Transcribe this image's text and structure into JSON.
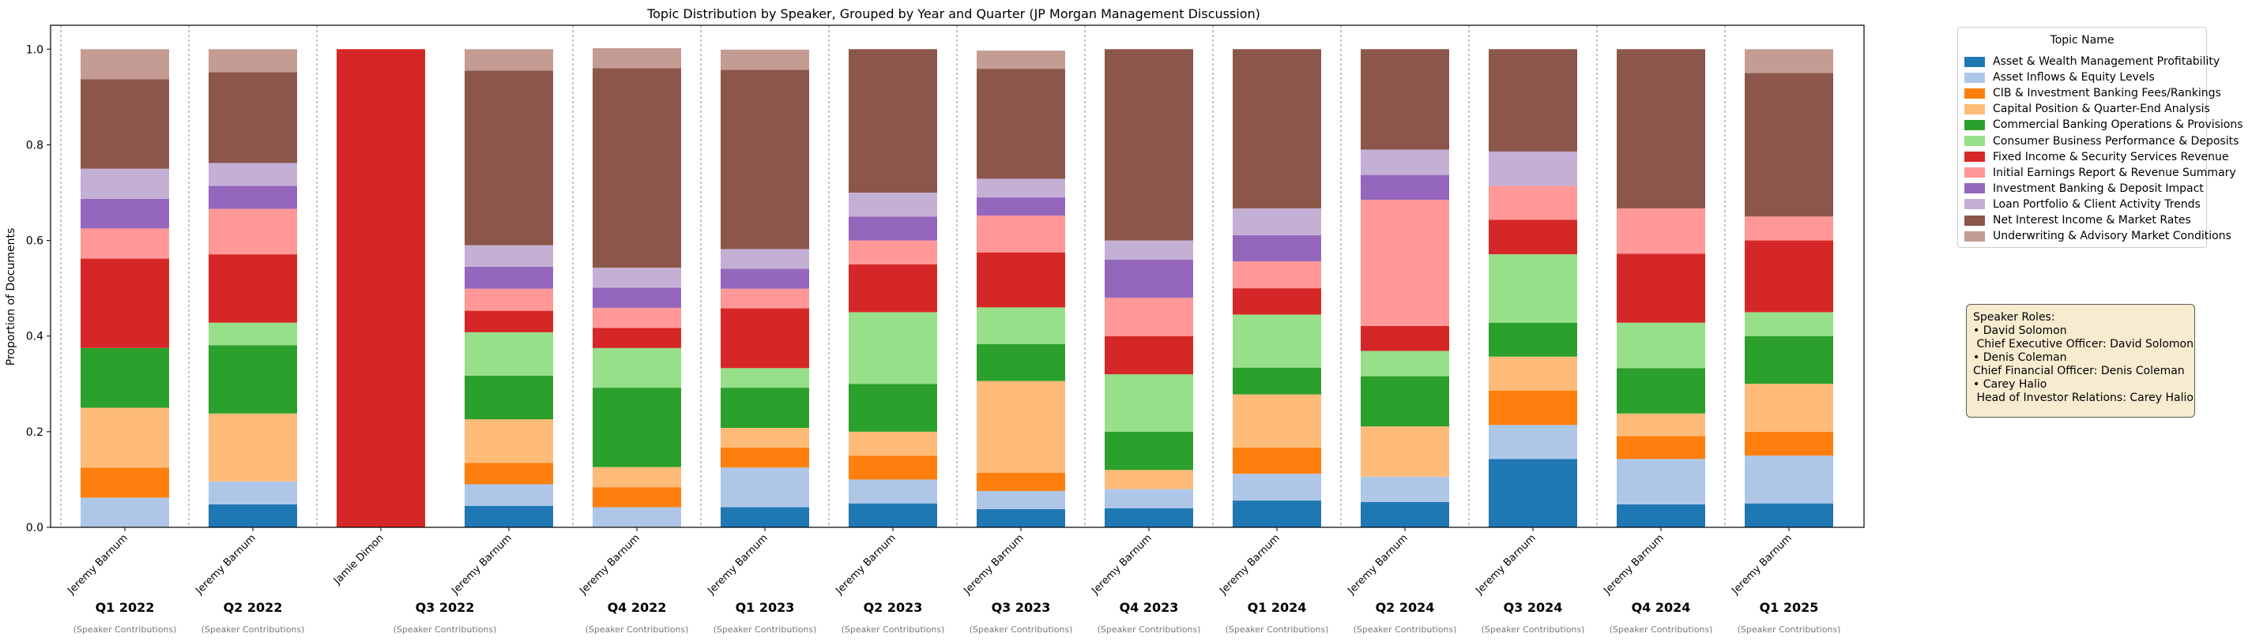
{
  "chart_data": {
    "type": "bar",
    "stacked": true,
    "title": "Topic Distribution by Speaker, Grouped by Year and Quarter (JP Morgan Management Discussion)",
    "ylabel": "Proportion of Documents",
    "ylim": [
      0,
      1.05
    ],
    "yticks": [
      "0.0",
      "0.2",
      "0.4",
      "0.6",
      "0.8",
      "1.0"
    ],
    "categories": [
      "Jeremy Barnum",
      "Jeremy Barnum",
      "Jamie Dimon",
      "Jeremy Barnum",
      "Jeremy Barnum",
      "Jeremy Barnum",
      "Jeremy Barnum",
      "Jeremy Barnum",
      "Jeremy Barnum",
      "Jeremy Barnum",
      "Jeremy Barnum",
      "Jeremy Barnum",
      "Jeremy Barnum",
      "Jeremy Barnum"
    ],
    "quarters": [
      "Q1 2022",
      "Q2 2022",
      "Q3 2022",
      "Q4 2022",
      "Q1 2023",
      "Q2 2023",
      "Q3 2023",
      "Q4 2023",
      "Q1 2024",
      "Q2 2024",
      "Q3 2024",
      "Q4 2024",
      "Q1 2025"
    ],
    "quarter_sub": "(Speaker Contributions)",
    "legend_title": "Topic Name",
    "legend_position": "upper right, outside plot",
    "grid": false,
    "series": [
      {
        "name": "Asset & Wealth Management Profitability",
        "color": "#1f77b4",
        "values": [
          0,
          0.048,
          0,
          0.045,
          0,
          0.042,
          0.05,
          0.038,
          0.04,
          0.056,
          0.053,
          0.143,
          0.048,
          0.05
        ]
      },
      {
        "name": "Asset Inflows & Equity Levels",
        "color": "#aec7e8",
        "values": [
          0.062,
          0.048,
          0,
          0.045,
          0.042,
          0.083,
          0.05,
          0.038,
          0.04,
          0.056,
          0.053,
          0.071,
          0.095,
          0.1
        ]
      },
      {
        "name": "CIB & Investment Banking Fees/Rankings",
        "color": "#ff7f0e",
        "values": [
          0.063,
          0,
          0,
          0.045,
          0.042,
          0.042,
          0.05,
          0.038,
          0,
          0.055,
          0,
          0.072,
          0.048,
          0.05
        ]
      },
      {
        "name": "Capital Position & Quarter-End Analysis",
        "color": "#ffbb78",
        "values": [
          0.125,
          0.142,
          0,
          0.091,
          0.042,
          0.041,
          0.05,
          0.192,
          0.04,
          0.111,
          0.105,
          0.071,
          0.047,
          0.1
        ]
      },
      {
        "name": "Commercial Banking Operations & Provisions",
        "color": "#2ca02c",
        "values": [
          0.125,
          0.143,
          0,
          0.091,
          0.166,
          0.084,
          0.1,
          0.077,
          0.08,
          0.056,
          0.105,
          0.071,
          0.095,
          0.1
        ]
      },
      {
        "name": "Consumer Business Performance & Deposits",
        "color": "#98df8a",
        "values": [
          0,
          0.047,
          0,
          0.091,
          0.083,
          0.041,
          0.15,
          0.077,
          0.12,
          0.111,
          0.053,
          0.143,
          0.095,
          0.05
        ]
      },
      {
        "name": "Fixed Income & Security Services Revenue",
        "color": "#d62728",
        "values": [
          0.187,
          0.143,
          1.0,
          0.045,
          0.042,
          0.125,
          0.1,
          0.115,
          0.08,
          0.055,
          0.052,
          0.072,
          0.144,
          0.15
        ]
      },
      {
        "name": "Initial Earnings Report & Revenue Summary",
        "color": "#ff9896",
        "values": [
          0.063,
          0.095,
          0,
          0.046,
          0.042,
          0.041,
          0.05,
          0.077,
          0.08,
          0.056,
          0.264,
          0.071,
          0.095,
          0.05
        ]
      },
      {
        "name": "Investment Banking & Deposit Impact",
        "color": "#9467bd",
        "values": [
          0.062,
          0.048,
          0,
          0.046,
          0.042,
          0.042,
          0.05,
          0.038,
          0.08,
          0.055,
          0.052,
          0,
          0,
          0
        ]
      },
      {
        "name": "Loan Portfolio & Client Activity Trends",
        "color": "#c5b0d5",
        "values": [
          0.063,
          0.048,
          0,
          0.045,
          0.042,
          0.041,
          0.05,
          0.039,
          0.04,
          0.056,
          0.053,
          0.072,
          0,
          0
        ]
      },
      {
        "name": "Net Interest Income & Market Rates",
        "color": "#8c564b",
        "values": [
          0.187,
          0.19,
          0,
          0.365,
          0.417,
          0.375,
          0.3,
          0.23,
          0.4,
          0.333,
          0.21,
          0.214,
          0.333,
          0.3
        ]
      },
      {
        "name": "Underwriting & Advisory Market Conditions",
        "color": "#c49c94",
        "values": [
          0.063,
          0.048,
          0,
          0.045,
          0.042,
          0.042,
          0,
          0.038,
          0,
          0,
          0,
          0,
          0,
          0.05
        ]
      }
    ]
  },
  "roles": {
    "lines": [
      "Speaker Roles:",
      "• David Solomon",
      " Chief Executive Officer: David Solomon",
      "• Denis Coleman",
      "Chief Financial Officer: Denis Coleman",
      "• Carey Halio",
      " Head of Investor Relations: Carey Halio"
    ]
  }
}
